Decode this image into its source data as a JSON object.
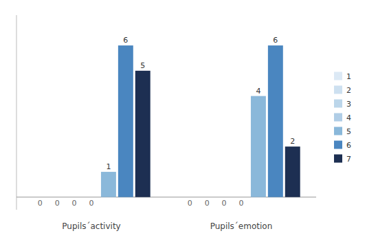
{
  "chart_data": {
    "type": "bar",
    "categories": [
      "Pupils´activity",
      "Pupils´emotion"
    ],
    "series": [
      {
        "name": "1",
        "color": "#dce9f5",
        "values": [
          0,
          0
        ]
      },
      {
        "name": "2",
        "color": "#cde0f0",
        "values": [
          0,
          0
        ]
      },
      {
        "name": "3",
        "color": "#bcd6ea",
        "values": [
          0,
          0
        ]
      },
      {
        "name": "4",
        "color": "#b0cde6",
        "values": [
          0,
          0
        ]
      },
      {
        "name": "5",
        "color": "#8ab8da",
        "values": [
          1,
          4
        ]
      },
      {
        "name": "6",
        "color": "#4a86c0",
        "values": [
          6,
          6
        ]
      },
      {
        "name": "7",
        "color": "#1d2f52",
        "values": [
          5,
          2
        ]
      }
    ],
    "ylim": [
      -0.5,
      7.2
    ],
    "data_labels": true,
    "tick_labels": "x",
    "legend": "right"
  }
}
